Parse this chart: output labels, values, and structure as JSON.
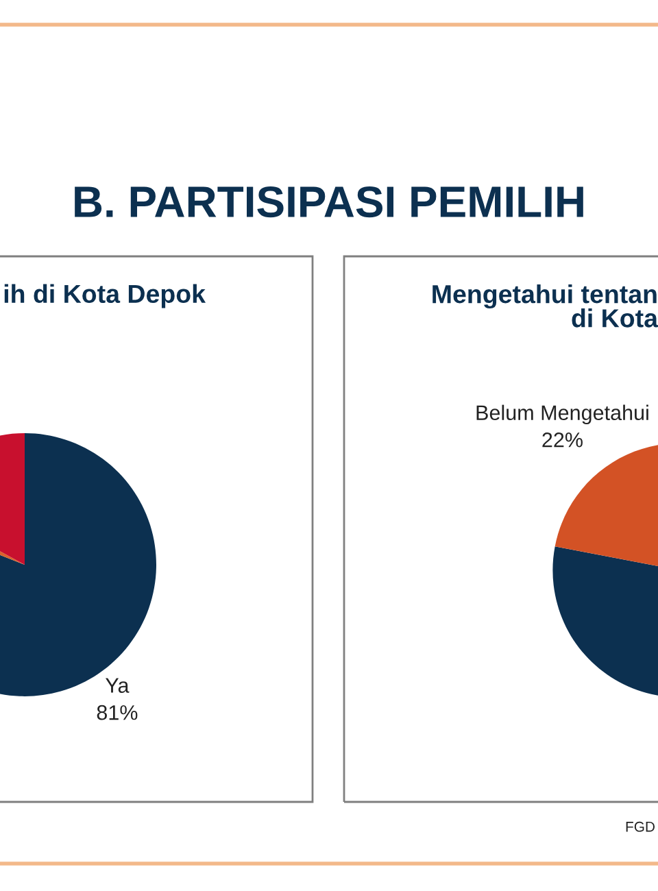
{
  "chart_data": [
    {
      "type": "pie",
      "title": "B. PARTISIPASI PEMILIH",
      "subtitle": "ih di Kota Depok",
      "categories": [
        "Ya",
        null,
        null
      ],
      "values": [
        81,
        2,
        17
      ],
      "colors": [
        "#0c3050",
        "#d9622b",
        "#c8102e"
      ],
      "value_labels": [
        "81%",
        null,
        null
      ]
    },
    {
      "type": "pie",
      "subtitle": "Mengetahui tentan\ndi Kota",
      "categories": [
        null,
        "Belum Mengetahui"
      ],
      "values": [
        78,
        22
      ],
      "colors": [
        "#0c3050",
        "#d35225"
      ],
      "value_labels": [
        null,
        "22%"
      ],
      "annotations": [
        "FGD"
      ]
    }
  ]
}
